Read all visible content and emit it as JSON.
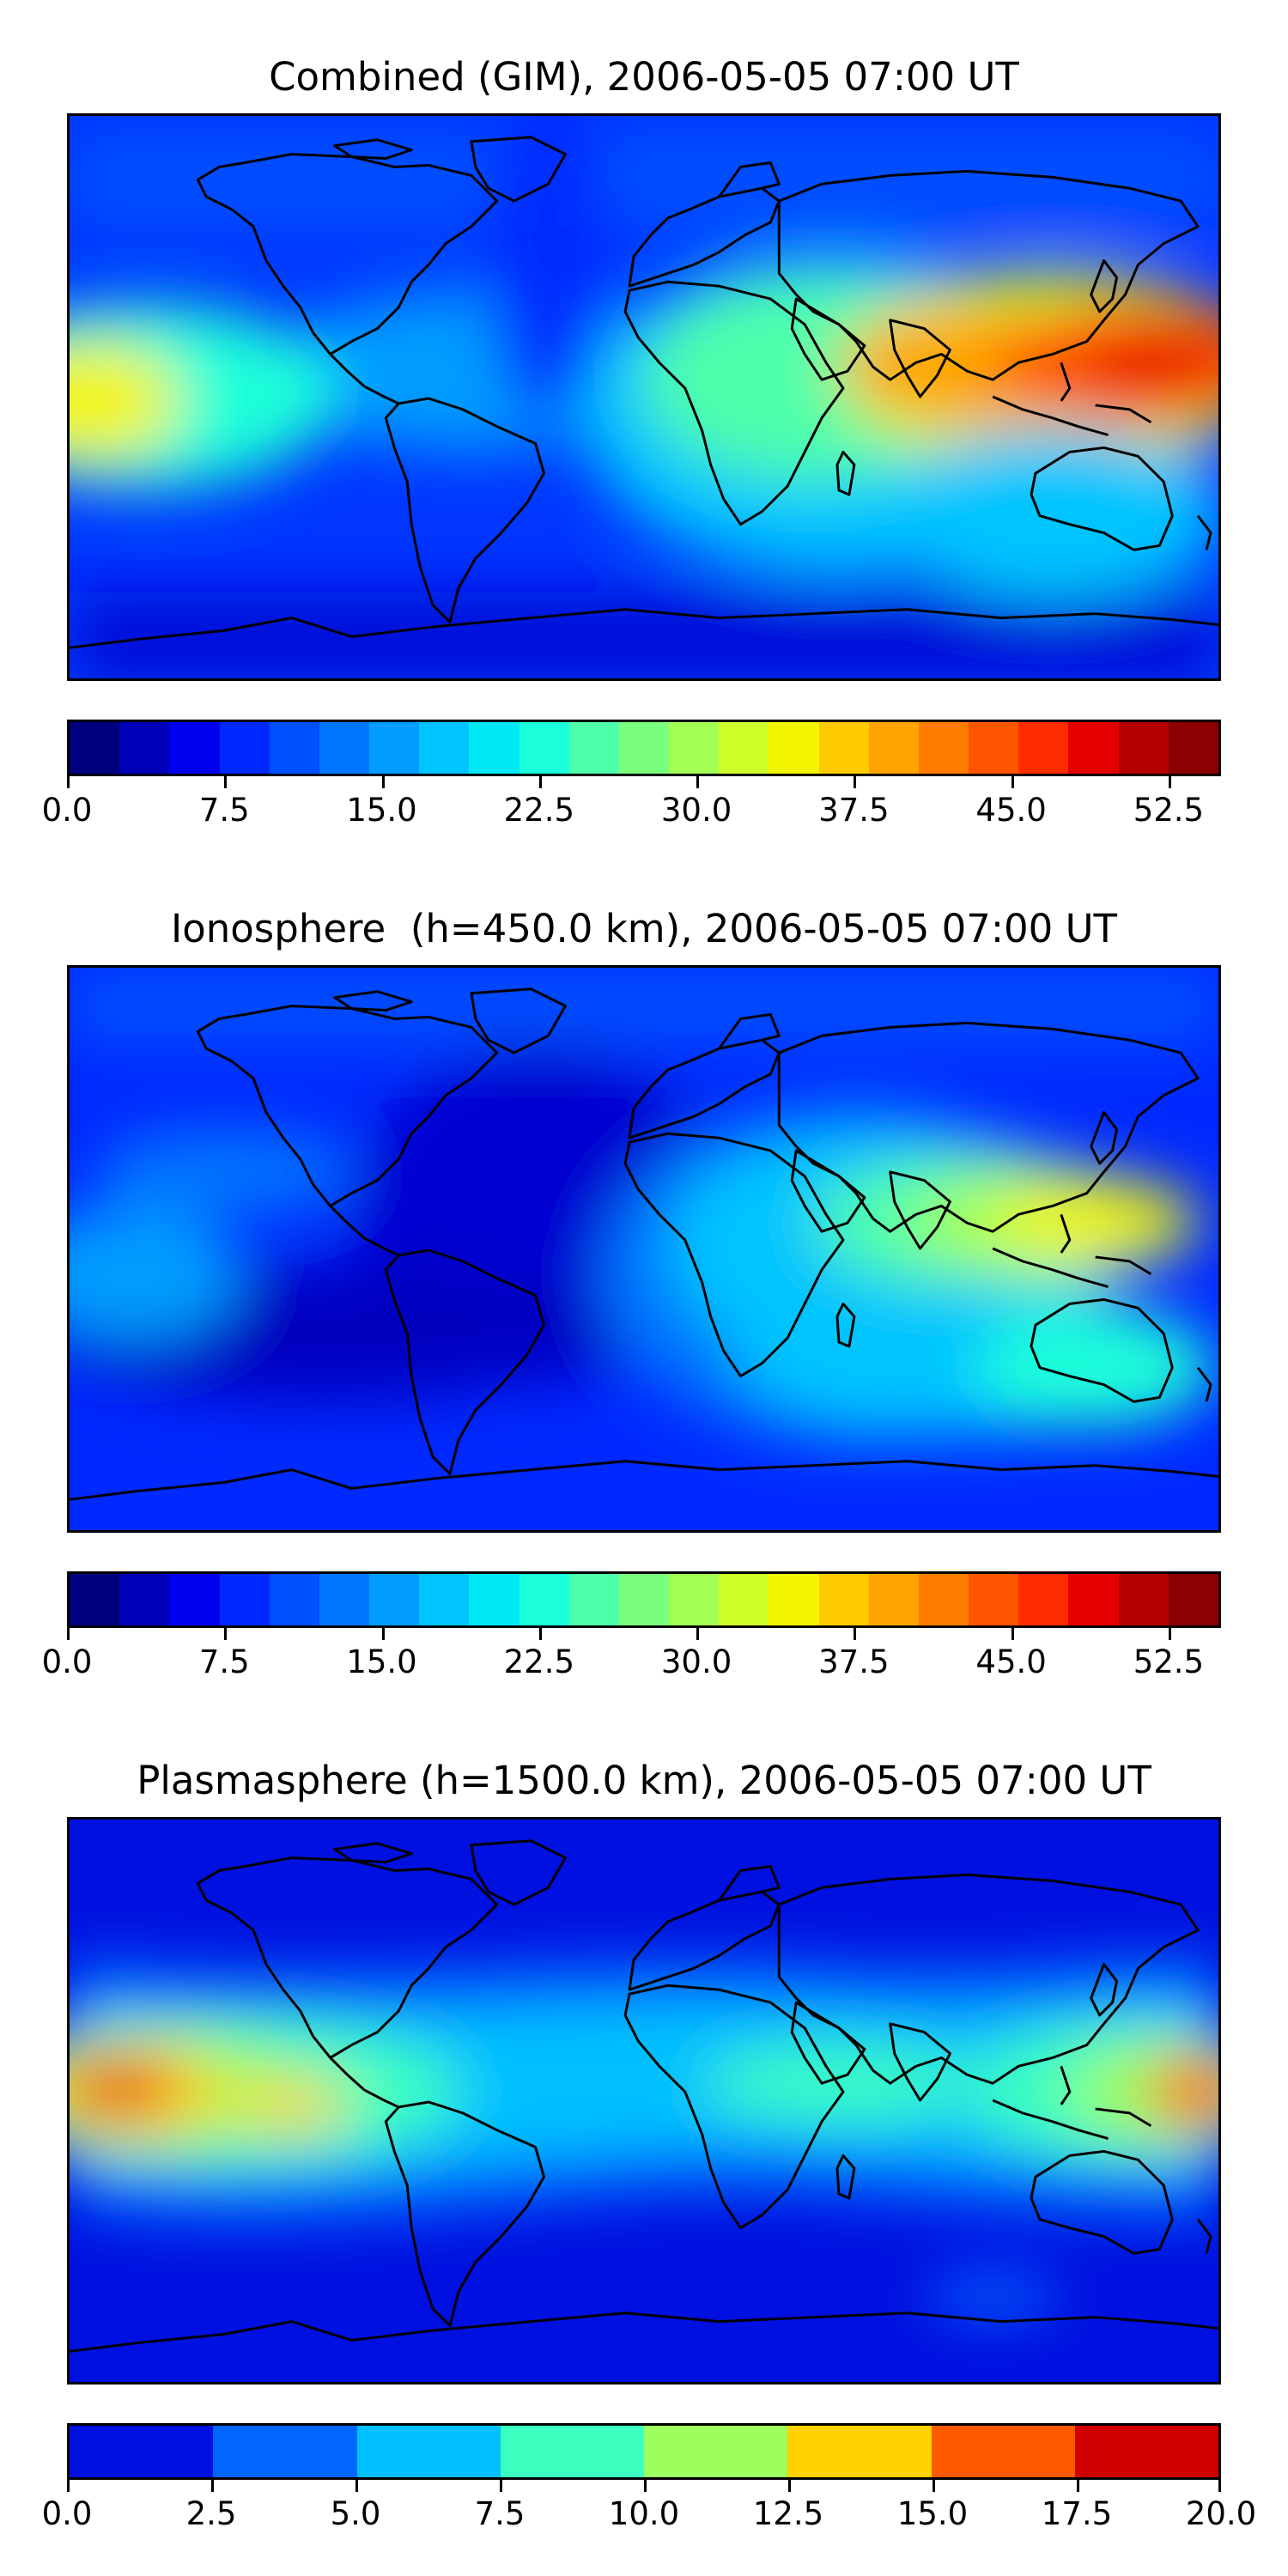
{
  "panels": [
    {
      "title": "Combined (GIM), 2006-05-05 07:00 UT",
      "map_type": "filled-contour TEC world map",
      "dominant_features": [
        "equatorial anomaly peak over SE Asia / W Pacific",
        "secondary peak at far west Pacific edge",
        "low values at high latitudes"
      ],
      "colorbar": {
        "colors": [
          "#00007f",
          "#0000b8",
          "#0000f1",
          "#0029ff",
          "#0050ff",
          "#0076ff",
          "#009cff",
          "#00c4ff",
          "#00e8f5",
          "#1affd9",
          "#4dffaa",
          "#7aff7d",
          "#a4ff53",
          "#cdff29",
          "#f3f400",
          "#ffcb00",
          "#ffa400",
          "#ff7c00",
          "#ff5400",
          "#ff2c00",
          "#e50000",
          "#b60000",
          "#8b0000"
        ],
        "min": 0.0,
        "max": 55.0,
        "tick_values": [
          0.0,
          7.5,
          15.0,
          22.5,
          30.0,
          37.5,
          45.0,
          52.5
        ],
        "tick_labels": [
          "0.0",
          "7.5",
          "15.0",
          "22.5",
          "30.0",
          "37.5",
          "45.0",
          "52.5"
        ]
      }
    },
    {
      "title": "Ionosphere  (h=450.0 km), 2006-05-05 07:00 UT",
      "map_type": "filled-contour TEC world map",
      "dominant_features": [
        "moderate peak over India / Indochina",
        "equatorial band across Africa and Indian Ocean",
        "low values over Atlantic and poles"
      ],
      "colorbar": {
        "colors": [
          "#00007f",
          "#0000b8",
          "#0000f1",
          "#0029ff",
          "#0050ff",
          "#0076ff",
          "#009cff",
          "#00c4ff",
          "#00e8f5",
          "#1affd9",
          "#4dffaa",
          "#7aff7d",
          "#a4ff53",
          "#cdff29",
          "#f3f400",
          "#ffcb00",
          "#ffa400",
          "#ff7c00",
          "#ff5400",
          "#ff2c00",
          "#e50000",
          "#b60000",
          "#8b0000"
        ],
        "min": 0.0,
        "max": 55.0,
        "tick_values": [
          0.0,
          7.5,
          15.0,
          22.5,
          30.0,
          37.5,
          45.0,
          52.5
        ],
        "tick_labels": [
          "0.0",
          "7.5",
          "15.0",
          "22.5",
          "30.0",
          "37.5",
          "45.0",
          "52.5"
        ]
      }
    },
    {
      "title": "Plasmasphere (h=1500.0 km), 2006-05-05 07:00 UT",
      "map_type": "filled-contour TEC world map",
      "dominant_features": [
        "peak in central Pacific (far left edge)",
        "secondary peak at far right edge",
        "broad equatorial band"
      ],
      "colorbar": {
        "colors": [
          "#0010e0",
          "#0066ff",
          "#00c0ff",
          "#3affbf",
          "#9cff5e",
          "#ffd200",
          "#ff5a00",
          "#d00000"
        ],
        "min": 0.0,
        "max": 20.0,
        "tick_values": [
          0.0,
          2.5,
          5.0,
          7.5,
          10.0,
          12.5,
          15.0,
          17.5,
          20.0
        ],
        "tick_labels": [
          "0.0",
          "2.5",
          "5.0",
          "7.5",
          "10.0",
          "12.5",
          "15.0",
          "17.5",
          "20.0"
        ]
      }
    }
  ]
}
